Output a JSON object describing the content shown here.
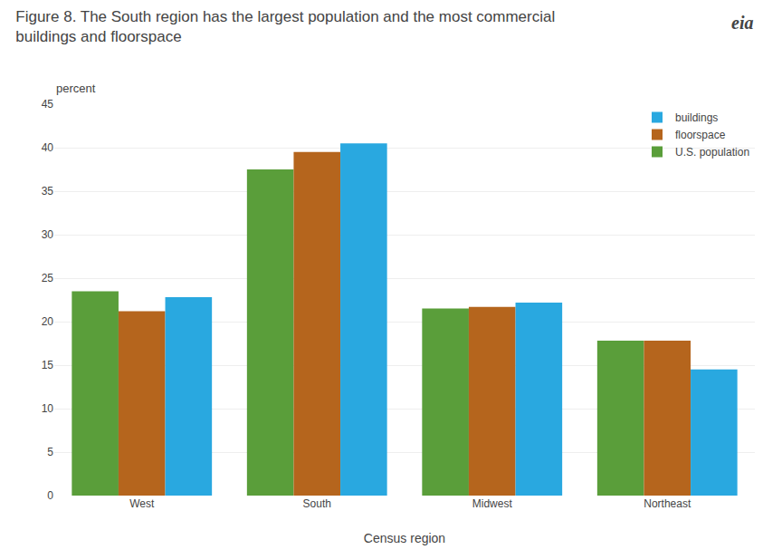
{
  "chart_data": {
    "type": "bar",
    "title": "Figure 8. The South region has the largest population and the most commercial buildings and floorspace",
    "xlabel": "Census region",
    "ylabel": "percent",
    "annotations": [
      "eia"
    ],
    "categories": [
      "West",
      "South",
      "Midwest",
      "Northeast"
    ],
    "series": [
      {
        "name": "U.S. population",
        "color": "#5a9e3a",
        "values": [
          23.5,
          37.5,
          21.5,
          17.8
        ]
      },
      {
        "name": "floorspace",
        "color": "#b5651d",
        "values": [
          21.2,
          39.5,
          21.7,
          17.8
        ]
      },
      {
        "name": "buildings",
        "color": "#29a8e0",
        "values": [
          22.8,
          40.5,
          22.2,
          14.5
        ]
      }
    ],
    "ylim": [
      0,
      45
    ],
    "yticks": [
      0,
      5,
      10,
      15,
      20,
      25,
      30,
      35,
      40,
      45
    ],
    "grid": true,
    "legend": "upper right"
  }
}
